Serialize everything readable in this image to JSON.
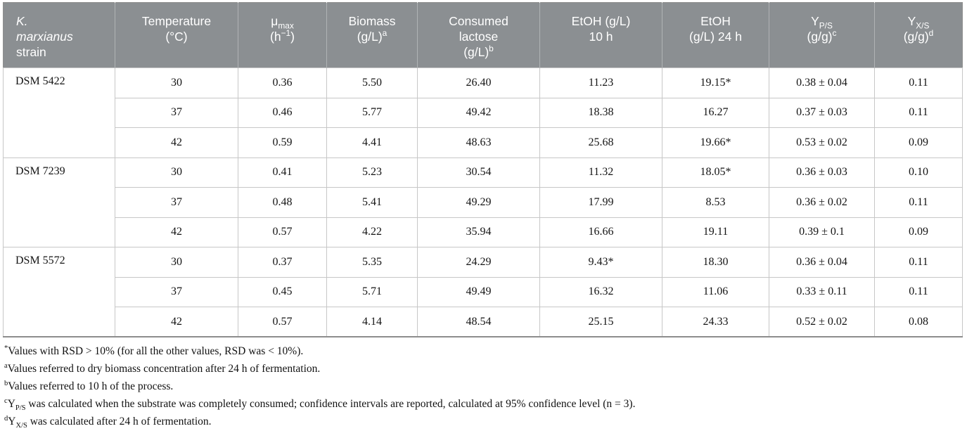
{
  "colors": {
    "header_background": "#8b8f92",
    "header_text": "#ffffff",
    "inner_border": "#c7c7c7",
    "outer_border": "#8d8d8d",
    "body_text": "#141414"
  },
  "table": {
    "columns": [
      {
        "id": "strain",
        "label": "~K.~\n~marxianus~\nstrain"
      },
      {
        "id": "temperature",
        "label": "Temperature\n(°C)"
      },
      {
        "id": "mu-max",
        "label": "μ_{max}\n(h^{−1})"
      },
      {
        "id": "biomass",
        "label": "Biomass\n(g/L)^{a}"
      },
      {
        "id": "consumed-lactose",
        "label": "Consumed\nlactose\n(g/L)^{b}"
      },
      {
        "id": "etoh-10h",
        "label": "EtOH (g/L)\n10 h"
      },
      {
        "id": "etoh-24h",
        "label": "EtOH\n(g/L) 24 h"
      },
      {
        "id": "yield-ps",
        "label": "Y_{P/S}\n(g/g)^{c}"
      },
      {
        "id": "yield-xs",
        "label": "Y_{X/S}\n(g/g)^{d}"
      }
    ],
    "groups": [
      {
        "strain": "DSM 5422",
        "rows": [
          [
            "30",
            "0.36",
            "5.50",
            "26.40",
            "11.23",
            "19.15*",
            "0.38 ± 0.04",
            "0.11"
          ],
          [
            "37",
            "0.46",
            "5.77",
            "49.42",
            "18.38",
            "16.27",
            "0.37 ± 0.03",
            "0.11"
          ],
          [
            "42",
            "0.59",
            "4.41",
            "48.63",
            "25.68",
            "19.66*",
            "0.53 ± 0.02",
            "0.09"
          ]
        ]
      },
      {
        "strain": "DSM 7239",
        "rows": [
          [
            "30",
            "0.41",
            "5.23",
            "30.54",
            "11.32",
            "18.05*",
            "0.36 ± 0.03",
            "0.10"
          ],
          [
            "37",
            "0.48",
            "5.41",
            "49.29",
            "17.99",
            "8.53",
            "0.36 ± 0.02",
            "0.11"
          ],
          [
            "42",
            "0.57",
            "4.22",
            "35.94",
            "16.66",
            "19.11",
            "0.39 ± 0.1",
            "0.09"
          ]
        ]
      },
      {
        "strain": "DSM 5572",
        "rows": [
          [
            "30",
            "0.37",
            "5.35",
            "24.29",
            "9.43*",
            "18.30",
            "0.36 ± 0.04",
            "0.11"
          ],
          [
            "37",
            "0.45",
            "5.71",
            "49.49",
            "16.32",
            "11.06",
            "0.33 ± 0.11",
            "0.11"
          ],
          [
            "42",
            "0.57",
            "4.14",
            "48.54",
            "25.15",
            "24.33",
            "0.52 ± 0.02",
            "0.08"
          ]
        ]
      }
    ],
    "footnotes": [
      "^{*}Values with RSD > 10% (for all the other values, RSD was < 10%).",
      "^{a}Values referred to dry biomass concentration after 24 h of fermentation.",
      "^{b}Values referred to 10 h of the process.",
      "^{c}Y_{P/S} was calculated when the substrate was completely consumed; confidence intervals are reported, calculated at 95% confidence level (n = 3).",
      "^{d}Y_{X/S} was calculated after 24 h of fermentation."
    ]
  }
}
